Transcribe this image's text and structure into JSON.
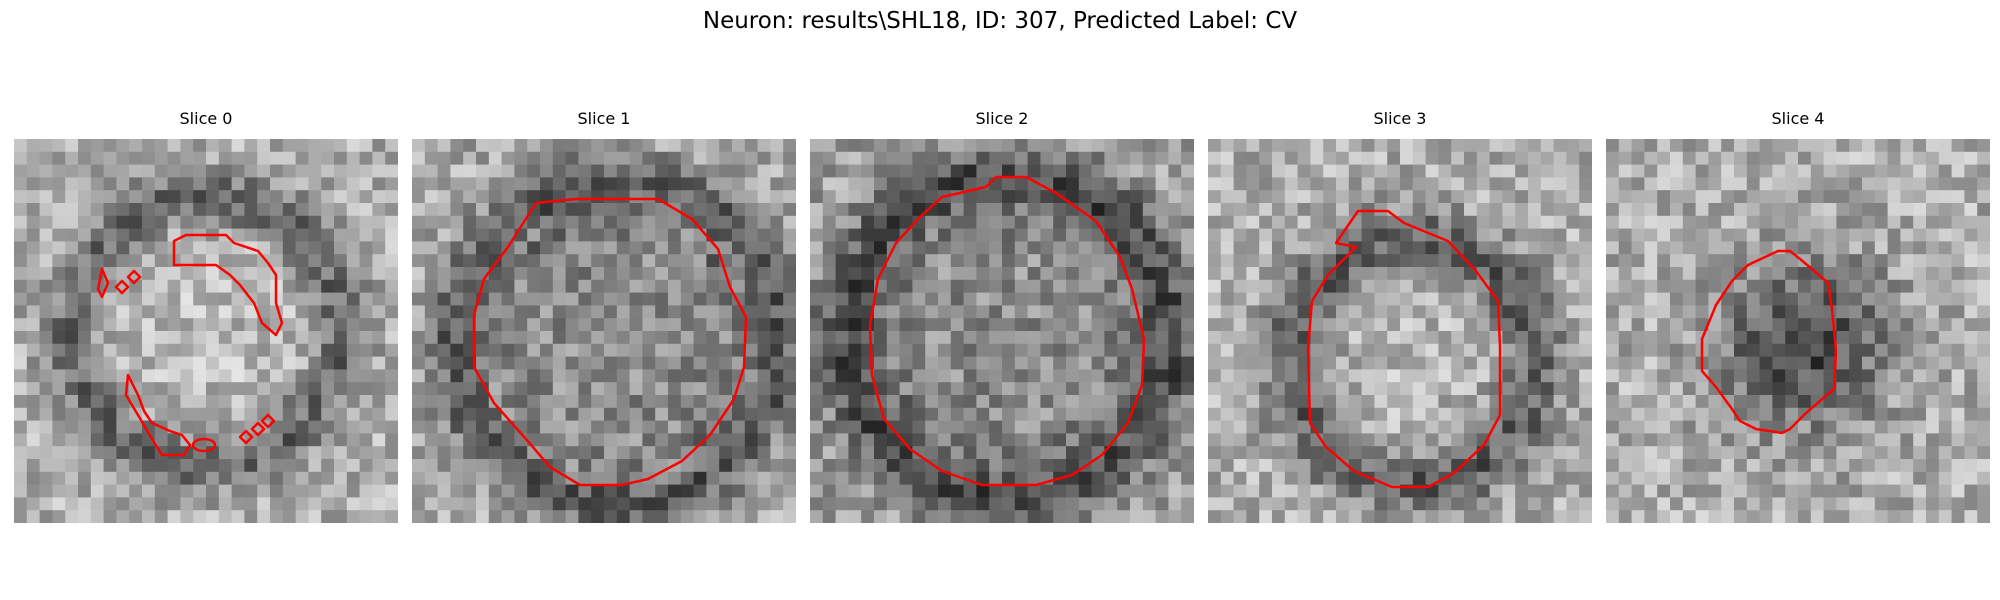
{
  "figure": {
    "title": "Neuron: results\\SHL18, ID: 307, Predicted Label: CV"
  },
  "panels": [
    {
      "title": "Slice 0"
    },
    {
      "title": "Slice 1"
    },
    {
      "title": "Slice 2"
    },
    {
      "title": "Slice 3"
    },
    {
      "title": "Slice 4"
    }
  ],
  "colors": {
    "contour": "#ff0000",
    "background": "#ffffff"
  }
}
